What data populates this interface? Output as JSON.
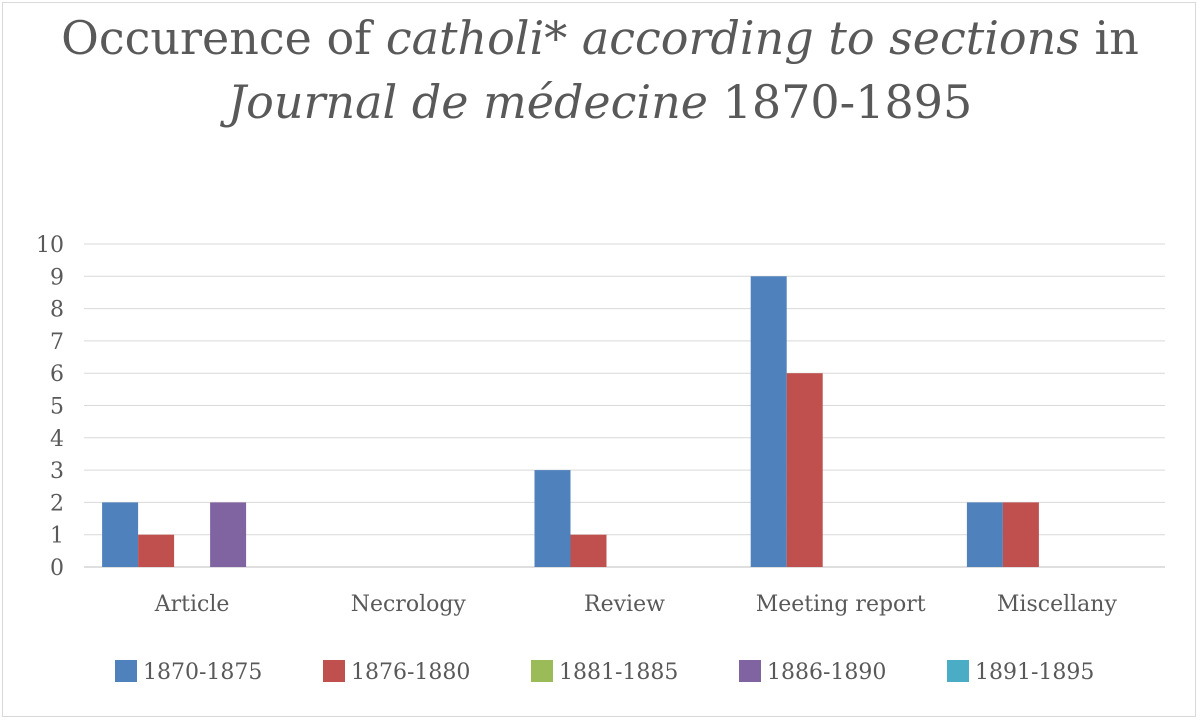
{
  "chart_data": {
    "type": "bar",
    "title_parts": [
      {
        "text": "Occurence of ",
        "italic": false
      },
      {
        "text": "catholi* according to sections",
        "italic": true
      },
      {
        "text": " in ",
        "italic": false
      },
      {
        "text": "Journal de médecine",
        "italic": true
      },
      {
        "text": " 1870-1895",
        "italic": false
      }
    ],
    "categories": [
      "Article",
      "Necrology",
      "Review",
      "Meeting report",
      "Miscellany"
    ],
    "series": [
      {
        "name": "1870-1875",
        "color": "#4f81bd",
        "values": [
          2,
          0,
          3,
          9,
          2
        ]
      },
      {
        "name": "1876-1880",
        "color": "#c0504d",
        "values": [
          1,
          0,
          1,
          6,
          2
        ]
      },
      {
        "name": "1881-1885",
        "color": "#9bbb59",
        "values": [
          0,
          0,
          0,
          0,
          0
        ]
      },
      {
        "name": "1886-1890",
        "color": "#8064a2",
        "values": [
          2,
          0,
          0,
          0,
          0
        ]
      },
      {
        "name": "1891-1895",
        "color": "#4bacc6",
        "values": [
          0,
          0,
          0,
          0,
          0
        ]
      }
    ],
    "ylim": [
      0,
      10
    ],
    "yticks": [
      0,
      1,
      2,
      3,
      4,
      5,
      6,
      7,
      8,
      9,
      10
    ],
    "grid": true,
    "legend": "bottom"
  }
}
